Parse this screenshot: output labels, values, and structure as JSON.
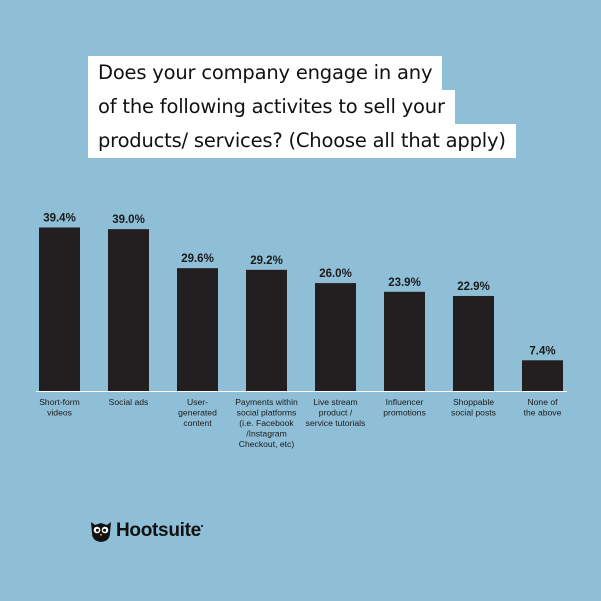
{
  "title_lines": [
    "Does your company engage in any",
    "of the following activites to sell your",
    "products/ services? (Choose all that apply)"
  ],
  "brand": {
    "name": "Hootsuite",
    "mark": "•"
  },
  "colors": {
    "background": "#8fbfd7",
    "bar": "#231f20",
    "text": "#1a1a1a",
    "title_bg": "#ffffff"
  },
  "chart_data": {
    "type": "bar",
    "title": "Does your company engage in any of the following activites to sell your products/ services? (Choose all that apply)",
    "categories": [
      [
        "Short-form",
        "videos"
      ],
      [
        "Social ads"
      ],
      [
        "User-",
        "generated",
        "content"
      ],
      [
        "Payments within",
        "social platforms",
        "(i.e. Facebook",
        "/Instagram",
        "Checkout, etc)"
      ],
      [
        "Live stream",
        "product /",
        "service tutorials"
      ],
      [
        "Influencer",
        "promotions"
      ],
      [
        "Shoppable",
        "social posts"
      ],
      [
        "None of",
        "the above"
      ]
    ],
    "values": [
      39.4,
      39.0,
      29.6,
      29.2,
      26.0,
      23.9,
      22.9,
      7.4
    ],
    "value_labels": [
      "39.4%",
      "39.0%",
      "29.6%",
      "29.2%",
      "26.0%",
      "23.9%",
      "22.9%",
      "7.4%"
    ],
    "unit": "%",
    "ylim": [
      0,
      40
    ],
    "grid": false,
    "legend": "none"
  }
}
